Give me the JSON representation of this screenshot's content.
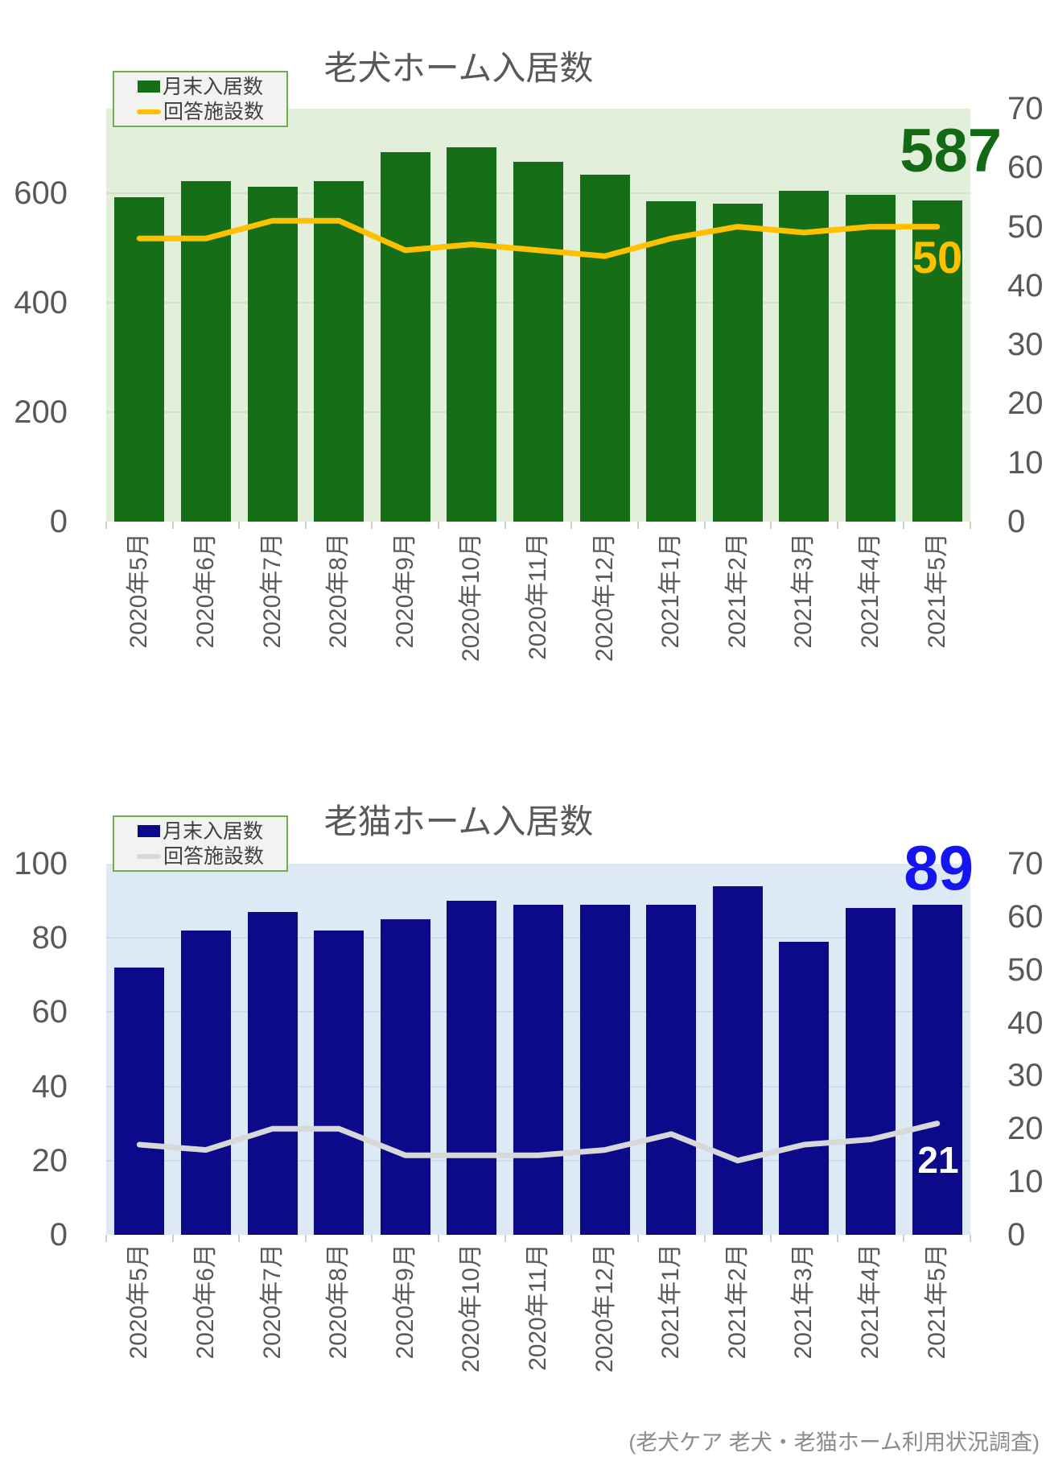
{
  "source_note": "(老犬ケア 老犬・老猫ホーム利用状況調査)",
  "chart_data": [
    {
      "type": "bar-line-combo",
      "title": "老犬ホーム入居数",
      "legend_position": "top-left",
      "categories": [
        "2020年5月",
        "2020年6月",
        "2020年7月",
        "2020年8月",
        "2020年9月",
        "2020年10月",
        "2020年11月",
        "2020年12月",
        "2021年1月",
        "2021年2月",
        "2021年3月",
        "2021年4月",
        "2021年5月"
      ],
      "series": [
        {
          "type": "bar",
          "name": "月末入居数",
          "axis": "left",
          "color": "#166f16",
          "values": [
            593,
            622,
            612,
            621,
            675,
            684,
            657,
            634,
            585,
            581,
            604,
            597,
            587
          ]
        },
        {
          "type": "line",
          "name": "回答施設数",
          "axis": "right",
          "color": "#FFC000",
          "values": [
            48,
            48,
            51,
            51,
            46,
            47,
            46,
            45,
            48,
            50,
            49,
            50,
            50
          ]
        }
      ],
      "left_axis": {
        "ticks": [
          0,
          200,
          400,
          600
        ],
        "max": 754
      },
      "right_axis": {
        "ticks": [
          0,
          10,
          20,
          30,
          40,
          50,
          60,
          70
        ],
        "max": 70
      },
      "plot_bg": "#e2efda",
      "grid_color": "#d2e2c6",
      "grid_on": true,
      "annotations": {
        "last_bar": {
          "text": "587",
          "color": "#146914"
        },
        "last_line": {
          "text": "50",
          "color": "#FFC000"
        }
      }
    },
    {
      "type": "bar-line-combo",
      "title": "老猫ホーム入居数",
      "legend_position": "top-left",
      "categories": [
        "2020年5月",
        "2020年6月",
        "2020年7月",
        "2020年8月",
        "2020年9月",
        "2020年10月",
        "2020年11月",
        "2020年12月",
        "2021年1月",
        "2021年2月",
        "2021年3月",
        "2021年4月",
        "2021年5月"
      ],
      "series": [
        {
          "type": "bar",
          "name": "月末入居数",
          "axis": "left",
          "color": "#0a0a8a",
          "values": [
            72,
            82,
            87,
            82,
            85,
            90,
            89,
            89,
            89,
            94,
            79,
            88,
            89
          ]
        },
        {
          "type": "line",
          "name": "回答施設数",
          "axis": "right",
          "color": "#d8d8d8",
          "values": [
            17,
            16,
            20,
            20,
            15,
            15,
            15,
            16,
            19,
            14,
            17,
            18,
            21
          ]
        }
      ],
      "left_axis": {
        "ticks": [
          0,
          20,
          40,
          60,
          80,
          100
        ],
        "max": 100
      },
      "right_axis": {
        "ticks": [
          0,
          10,
          20,
          30,
          40,
          50,
          60,
          70
        ],
        "max": 70
      },
      "plot_bg": "#dde9f4",
      "grid_color": "#cbdcee",
      "grid_on": true,
      "annotations": {
        "last_bar": {
          "text": "89",
          "color": "#1515f0"
        },
        "last_line": {
          "text": "21",
          "color": "#ffffff"
        }
      }
    }
  ]
}
